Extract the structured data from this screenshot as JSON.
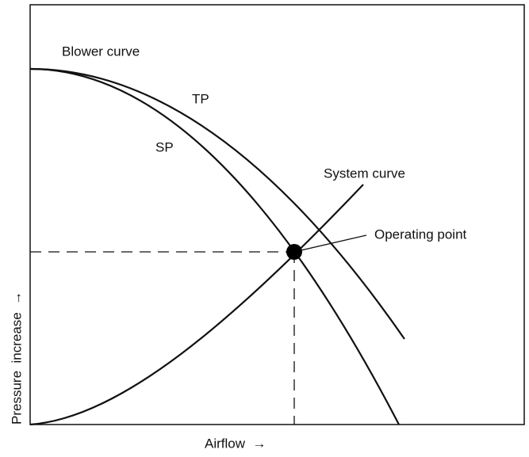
{
  "labels": {
    "blower_curve": "Blower curve",
    "tp": "TP",
    "sp": "SP",
    "system_curve": "System curve",
    "operating_point": "Operating point",
    "x_axis": "Airflow  →",
    "y_axis": "Pressure  increase  →"
  }
}
